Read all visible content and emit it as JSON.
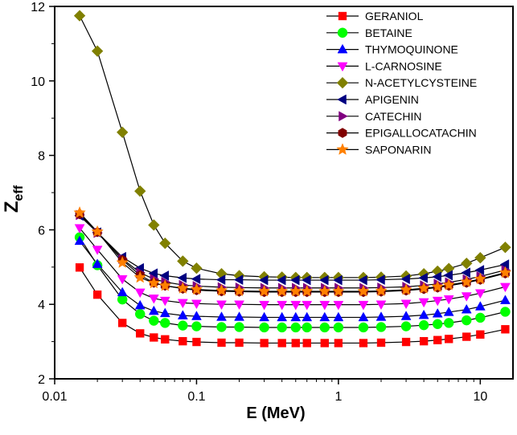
{
  "chart_data": {
    "type": "line",
    "xscale": "log",
    "xlabel": "E (MeV)",
    "ylabel_main": "Z",
    "ylabel_sub": "eff",
    "xlim": [
      0.01,
      17
    ],
    "ylim": [
      2,
      12
    ],
    "xticks": [
      0.01,
      0.1,
      1,
      10
    ],
    "xtick_labels": [
      "0.01",
      "0.1",
      "1",
      "10"
    ],
    "yticks": [
      2,
      4,
      6,
      8,
      10,
      12
    ],
    "ytick_labels": [
      "2",
      "4",
      "6",
      "8",
      "10",
      "12"
    ],
    "legend_position": "top-right",
    "x": [
      0.015,
      0.02,
      0.03,
      0.04,
      0.05,
      0.06,
      0.08,
      0.1,
      0.15,
      0.2,
      0.3,
      0.4,
      0.5,
      0.6,
      0.8,
      1,
      1.5,
      2,
      3,
      4,
      5,
      6,
      8,
      10,
      15
    ],
    "series": [
      {
        "name": "GERANIOL",
        "color": "#ff0000",
        "marker": "square",
        "values": [
          4.99,
          4.26,
          3.5,
          3.22,
          3.11,
          3.06,
          3.01,
          2.99,
          2.97,
          2.97,
          2.96,
          2.96,
          2.96,
          2.96,
          2.96,
          2.96,
          2.96,
          2.97,
          2.99,
          3.01,
          3.04,
          3.07,
          3.13,
          3.19,
          3.33
        ]
      },
      {
        "name": "BETAINE",
        "color": "#00ff00",
        "marker": "circle",
        "values": [
          5.8,
          5.05,
          4.13,
          3.74,
          3.56,
          3.5,
          3.43,
          3.41,
          3.39,
          3.39,
          3.38,
          3.38,
          3.38,
          3.38,
          3.38,
          3.38,
          3.38,
          3.39,
          3.41,
          3.44,
          3.47,
          3.5,
          3.57,
          3.64,
          3.8
        ]
      },
      {
        "name": "THYMOQUINONE",
        "color": "#0000ff",
        "marker": "triangle-up",
        "values": [
          5.7,
          5.08,
          4.32,
          3.97,
          3.82,
          3.76,
          3.7,
          3.68,
          3.66,
          3.66,
          3.65,
          3.65,
          3.65,
          3.65,
          3.65,
          3.65,
          3.65,
          3.66,
          3.68,
          3.71,
          3.75,
          3.79,
          3.86,
          3.94,
          4.11
        ]
      },
      {
        "name": "L-CARNOSINE",
        "color": "#ff00ff",
        "marker": "triangle-down",
        "values": [
          6.05,
          5.47,
          4.68,
          4.32,
          4.16,
          4.1,
          4.04,
          4.02,
          4.0,
          4.0,
          3.99,
          3.99,
          3.99,
          3.99,
          3.99,
          3.99,
          3.99,
          4.0,
          4.02,
          4.06,
          4.1,
          4.14,
          4.22,
          4.3,
          4.47
        ]
      },
      {
        "name": "N-ACETYLCYSTEINE",
        "color": "#808000",
        "marker": "diamond",
        "values": [
          11.75,
          10.8,
          8.62,
          7.04,
          6.13,
          5.64,
          5.16,
          4.97,
          4.82,
          4.77,
          4.74,
          4.73,
          4.72,
          4.72,
          4.72,
          4.72,
          4.72,
          4.73,
          4.76,
          4.82,
          4.89,
          4.96,
          5.1,
          5.25,
          5.53
        ]
      },
      {
        "name": "APIGENIN",
        "color": "#000080",
        "marker": "triangle-left",
        "values": [
          6.38,
          5.93,
          5.27,
          4.97,
          4.83,
          4.77,
          4.71,
          4.68,
          4.66,
          4.66,
          4.65,
          4.65,
          4.65,
          4.65,
          4.65,
          4.65,
          4.65,
          4.66,
          4.68,
          4.71,
          4.74,
          4.78,
          4.85,
          4.92,
          5.07
        ]
      },
      {
        "name": "CATECHIN",
        "color": "#800080",
        "marker": "triangle-right",
        "values": [
          6.4,
          5.92,
          5.22,
          4.85,
          4.68,
          4.6,
          4.52,
          4.49,
          4.46,
          4.45,
          4.44,
          4.44,
          4.44,
          4.44,
          4.44,
          4.44,
          4.44,
          4.45,
          4.47,
          4.51,
          4.55,
          4.59,
          4.67,
          4.75,
          4.92
        ]
      },
      {
        "name": "EPIGALLOCATACHIN",
        "color": "#800000",
        "marker": "hexagon",
        "values": [
          6.42,
          5.94,
          5.19,
          4.78,
          4.58,
          4.5,
          4.42,
          4.38,
          4.35,
          4.34,
          4.33,
          4.33,
          4.33,
          4.33,
          4.33,
          4.33,
          4.33,
          4.34,
          4.37,
          4.41,
          4.45,
          4.5,
          4.58,
          4.66,
          4.83
        ]
      },
      {
        "name": "SAPONARIN",
        "color": "#ff8000",
        "marker": "star",
        "values": [
          6.46,
          5.95,
          5.12,
          4.72,
          4.57,
          4.5,
          4.43,
          4.4,
          4.37,
          4.36,
          4.35,
          4.35,
          4.35,
          4.35,
          4.35,
          4.35,
          4.35,
          4.36,
          4.39,
          4.43,
          4.47,
          4.52,
          4.6,
          4.68,
          4.85
        ]
      }
    ]
  }
}
